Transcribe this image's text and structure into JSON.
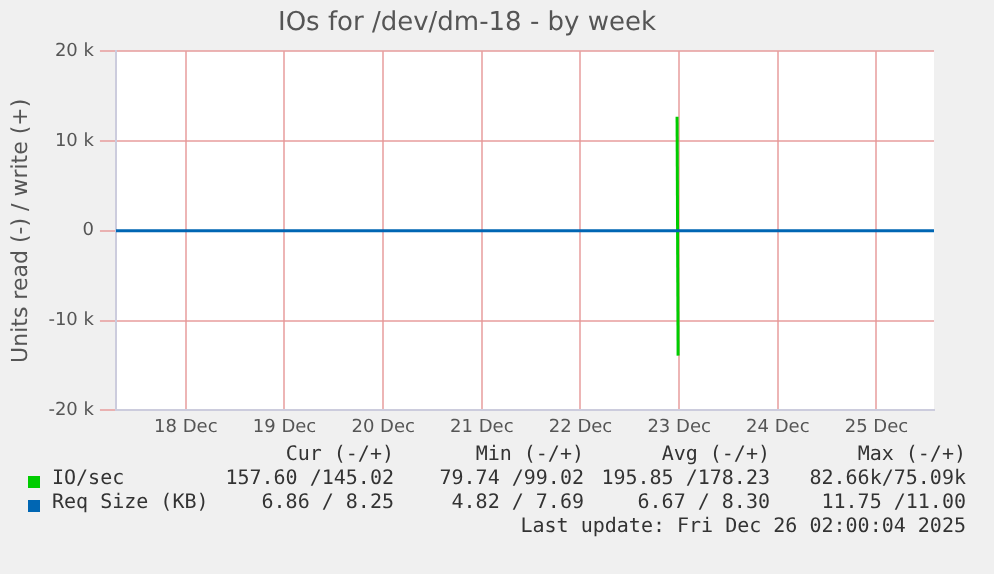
{
  "chart_data": {
    "type": "line",
    "title": "IOs for /dev/dm-18 - by week",
    "ylabel": "Units read (-) / write (+)",
    "xlim": [
      "2025-12-17T19:00",
      "2025-12-26T02:00"
    ],
    "xticks": [
      {
        "value": "2025-12-18T12:00",
        "label": "18 Dec"
      },
      {
        "value": "2025-12-19T12:00",
        "label": "19 Dec"
      },
      {
        "value": "2025-12-20T12:00",
        "label": "20 Dec"
      },
      {
        "value": "2025-12-21T12:00",
        "label": "21 Dec"
      },
      {
        "value": "2025-12-22T12:00",
        "label": "22 Dec"
      },
      {
        "value": "2025-12-23T12:00",
        "label": "23 Dec"
      },
      {
        "value": "2025-12-24T12:00",
        "label": "24 Dec"
      },
      {
        "value": "2025-12-25T12:00",
        "label": "25 Dec"
      }
    ],
    "ylim": [
      -20000,
      20000
    ],
    "yticks": [
      {
        "value": -20000,
        "label": "-20 k"
      },
      {
        "value": -10000,
        "label": "-10 k"
      },
      0,
      {
        "value": 10000,
        "label": "10 k"
      },
      {
        "value": 20000,
        "label": "20 k"
      }
    ],
    "grid": true,
    "legend": "bottom",
    "marker": "none",
    "line_style": "solid",
    "series": [
      {
        "name": "IO/sec",
        "color": "#00cc00",
        "x": [
          "2025-12-23T11:30",
          "2025-12-23T11:45"
        ],
        "values": [
          12700,
          -13900
        ]
      },
      {
        "name": "Req Size (KB)",
        "color": "#0066b3",
        "x": [
          "2025-12-17T19:00",
          "2025-12-26T02:00"
        ],
        "values": [
          0,
          0
        ]
      }
    ],
    "annotations": [
      "Cur (-/+)",
      "Min (-/+)",
      "Avg (-/+)",
      "Max (-/+)",
      "157.60 /145.02",
      "79.74 /99.02",
      "195.85 /178.23",
      "82.66k/75.09k",
      "6.86 / 8.25",
      "4.82 / 7.69",
      "6.67 / 8.30",
      "11.75 /11.00",
      "Last update: Fri Dec 26 02:00:04 2025"
    ]
  }
}
